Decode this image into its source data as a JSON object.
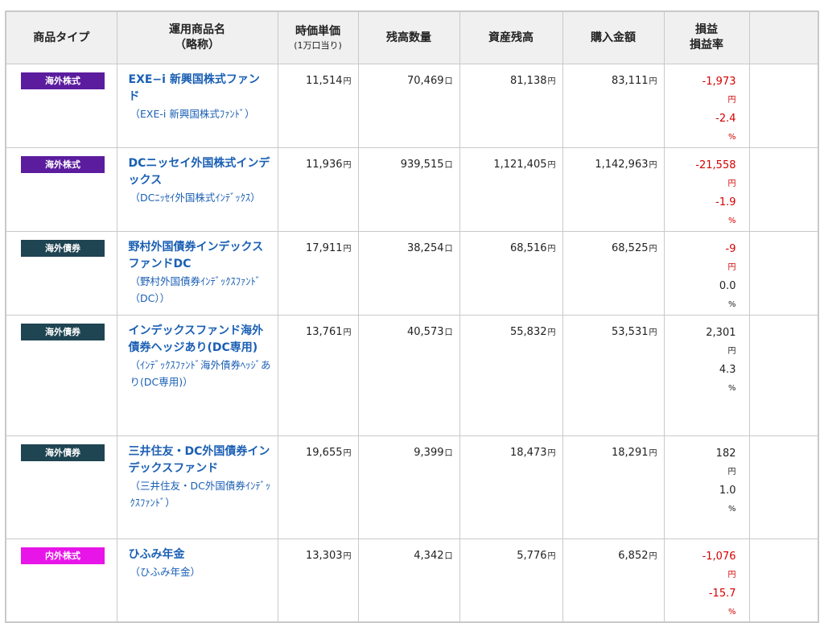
{
  "headers": {
    "type": "商品タイプ",
    "name": "運用商品名",
    "name_sub": "（略称）",
    "unit_price": "時価単価",
    "unit_price_sub": "(1万口当り)",
    "quantity": "残高数量",
    "asset": "資産残高",
    "purchase": "購入金額",
    "pl": "損益",
    "pl_rate": "損益率"
  },
  "units": {
    "yen": "円",
    "kuchi": "口",
    "percent": "%"
  },
  "colors": {
    "foreign_equity": "#5b1c9e",
    "foreign_bond": "#1f4452",
    "domestic_foreign_equity": "#e815e8",
    "link": "#1a5fb4",
    "loss": "#d40000"
  },
  "rows": [
    {
      "type": "海外株式",
      "type_color": "#5b1c9e",
      "name": "EXE−i 新興国株式ファンド",
      "short": "（EXE-i 新興国株式ﾌｧﾝﾄﾞ）",
      "unit_price": "11,514",
      "quantity": "70,469",
      "asset": "81,138",
      "purchase": "83,111",
      "pl": "-1,973",
      "pl_rate": "-2.4",
      "pl_sign": "neg"
    },
    {
      "type": "海外株式",
      "type_color": "#5b1c9e",
      "name": "DCニッセイ外国株式インデックス",
      "short": "（DCﾆｯｾｲ外国株式ｲﾝﾃﾞｯｸｽ）",
      "unit_price": "11,936",
      "quantity": "939,515",
      "asset": "1,121,405",
      "purchase": "1,142,963",
      "pl": "-21,558",
      "pl_rate": "-1.9",
      "pl_sign": "neg"
    },
    {
      "type": "海外債券",
      "type_color": "#1f4452",
      "name": "野村外国債券インデックスファンドDC",
      "short": "（野村外国債券ｲﾝﾃﾞｯｸｽﾌｧﾝﾄﾞ（DC））",
      "unit_price": "17,911",
      "quantity": "38,254",
      "asset": "68,516",
      "purchase": "68,525",
      "pl": "-9",
      "pl_rate": "0.0",
      "pl_sign": "neg",
      "pl_rate_sign": "pos"
    },
    {
      "type": "海外債券",
      "type_color": "#1f4452",
      "name": "インデックスファンド海外債券ヘッジあり(DC専用)",
      "short": "（ｲﾝﾃﾞｯｸｽﾌｧﾝﾄﾞ海外債券ﾍｯｼﾞあり(DC専用)）",
      "unit_price": "13,761",
      "quantity": "40,573",
      "asset": "55,832",
      "purchase": "53,531",
      "pl": "2,301",
      "pl_rate": "4.3",
      "pl_sign": "pos"
    },
    {
      "type": "海外債券",
      "type_color": "#1f4452",
      "name": "三井住友・DC外国債券インデックスファンド",
      "short": "（三井住友・DC外国債券ｲﾝﾃﾞｯｸｽﾌｧﾝﾄﾞ）",
      "unit_price": "19,655",
      "quantity": "9,399",
      "asset": "18,473",
      "purchase": "18,291",
      "pl": "182",
      "pl_rate": "1.0",
      "pl_sign": "pos"
    },
    {
      "type": "内外株式",
      "type_color": "#e815e8",
      "name": "ひふみ年金",
      "short": "（ひふみ年金）",
      "unit_price": "13,303",
      "quantity": "4,342",
      "asset": "5,776",
      "purchase": "6,852",
      "pl": "-1,076",
      "pl_rate": "-15.7",
      "pl_sign": "neg"
    }
  ]
}
